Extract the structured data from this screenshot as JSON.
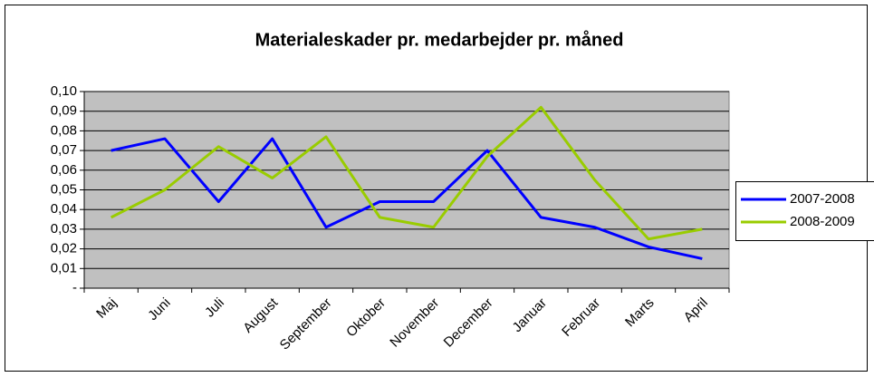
{
  "chart_data": {
    "type": "line",
    "title": "Materialeskader pr. medarbejder pr. måned",
    "categories": [
      "Maj",
      "Juni",
      "Juli",
      "August",
      "September",
      "Oktober",
      "November",
      "December",
      "Januar",
      "Februar",
      "Marts",
      "April"
    ],
    "series": [
      {
        "name": "2007-2008",
        "color": "#0000ff",
        "values": [
          0.07,
          0.076,
          0.044,
          0.076,
          0.031,
          0.044,
          0.044,
          0.07,
          0.036,
          0.031,
          0.021,
          0.015
        ]
      },
      {
        "name": "2008-2009",
        "color": "#99cc00",
        "values": [
          0.036,
          0.05,
          0.072,
          0.056,
          0.077,
          0.036,
          0.031,
          0.067,
          0.092,
          0.055,
          0.025,
          0.03
        ]
      }
    ],
    "ylim": [
      0,
      0.1
    ],
    "yticks": [
      {
        "value": 0,
        "label": "-"
      },
      {
        "value": 0.01,
        "label": "0,01"
      },
      {
        "value": 0.02,
        "label": "0,02"
      },
      {
        "value": 0.03,
        "label": "0,03"
      },
      {
        "value": 0.04,
        "label": "0,04"
      },
      {
        "value": 0.05,
        "label": "0,05"
      },
      {
        "value": 0.06,
        "label": "0,06"
      },
      {
        "value": 0.07,
        "label": "0,07"
      },
      {
        "value": 0.08,
        "label": "0,08"
      },
      {
        "value": 0.09,
        "label": "0,09"
      },
      {
        "value": 0.1,
        "label": "0,10"
      }
    ],
    "grid": true,
    "legend": "right",
    "background": "#c0c0c0"
  }
}
